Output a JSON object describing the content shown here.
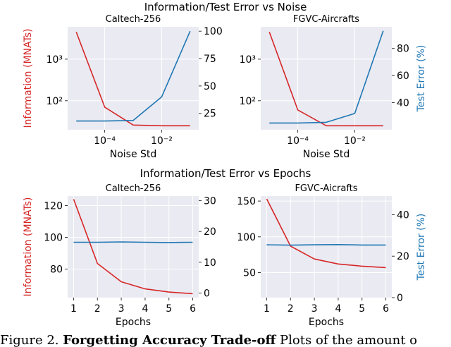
{
  "figure": {
    "top_title": "Information/Test Error vs Noise",
    "bottom_title": "Information/Test Error vs Epochs",
    "caption_prefix": "Figure 2.",
    "caption_bold": "Forgetting Accuracy Trade-off",
    "caption_rest": "Plots of the amount o",
    "colors": {
      "information": "#d62728",
      "error": "#1f77b4",
      "plot_bg": "#eaeaf2",
      "grid": "#ffffff"
    }
  },
  "chart_data": [
    {
      "type": "line",
      "title": "Caltech-256",
      "xlabel": "Noise Std",
      "ylabel_left": "Information (MNATs)",
      "ylabel_right": "",
      "xscale": "log",
      "yscale_left": "log",
      "yscale_right": "linear",
      "xlim": [
        5e-06,
        0.2
      ],
      "ylim_left": [
        20,
        6000
      ],
      "ylim_right": [
        10,
        104
      ],
      "x_ticks": [
        0.0001,
        0.01
      ],
      "x_tick_labels": [
        "10⁻⁴",
        "10⁻²"
      ],
      "y_left_ticks": [
        100,
        1000
      ],
      "y_left_tick_labels": [
        "10²",
        "10³"
      ],
      "y_right_ticks": [
        25,
        50,
        75,
        100
      ],
      "y_right_tick_labels": [
        "25",
        "50",
        "75",
        "100"
      ],
      "grid": true,
      "series": [
        {
          "axis": "left",
          "color": "#d62728",
          "x": [
            1e-05,
            0.0001,
            0.001,
            0.01,
            0.1
          ],
          "y": [
            4500,
            70,
            26,
            25,
            25
          ]
        },
        {
          "axis": "right",
          "color": "#1f77b4",
          "x": [
            1e-05,
            0.0001,
            0.001,
            0.01,
            0.1
          ],
          "y": [
            18,
            18,
            18.5,
            40,
            100
          ]
        }
      ]
    },
    {
      "type": "line",
      "title": "FGVC-Aircrafts",
      "xlabel": "Noise Std",
      "ylabel_left": "",
      "ylabel_right": "Test Error (%)",
      "xscale": "log",
      "yscale_left": "log",
      "yscale_right": "linear",
      "xlim": [
        5e-06,
        0.2
      ],
      "ylim_left": [
        20,
        6000
      ],
      "ylim_right": [
        20,
        96
      ],
      "x_ticks": [
        0.0001,
        0.01
      ],
      "x_tick_labels": [
        "10⁻⁴",
        "10⁻²"
      ],
      "y_left_ticks": [
        100,
        1000
      ],
      "y_left_tick_labels": [
        "10²",
        "10³"
      ],
      "y_right_ticks": [
        40,
        60,
        80
      ],
      "y_right_tick_labels": [
        "40",
        "60",
        "80"
      ],
      "grid": true,
      "series": [
        {
          "axis": "left",
          "color": "#d62728",
          "x": [
            1e-05,
            0.0001,
            0.001,
            0.01,
            0.1
          ],
          "y": [
            4500,
            60,
            25,
            25,
            25
          ]
        },
        {
          "axis": "right",
          "color": "#1f77b4",
          "x": [
            1e-05,
            0.0001,
            0.001,
            0.01,
            0.1
          ],
          "y": [
            25,
            25,
            25.5,
            32,
            93
          ]
        }
      ]
    },
    {
      "type": "line",
      "title": "Caltech-256",
      "xlabel": "Epochs",
      "ylabel_left": "Information (MNATs)",
      "ylabel_right": "",
      "xscale": "linear",
      "yscale_left": "linear",
      "yscale_right": "linear",
      "xlim": [
        0.75,
        6.25
      ],
      "ylim_left": [
        62,
        126
      ],
      "ylim_right": [
        -1.5,
        31.5
      ],
      "x_ticks": [
        1,
        2,
        3,
        4,
        5,
        6
      ],
      "x_tick_labels": [
        "1",
        "2",
        "3",
        "4",
        "5",
        "6"
      ],
      "y_left_ticks": [
        80,
        100,
        120
      ],
      "y_left_tick_labels": [
        "80",
        "100",
        "120"
      ],
      "y_right_ticks": [
        0,
        10,
        20,
        30
      ],
      "y_right_tick_labels": [
        "0",
        "10",
        "20",
        "30"
      ],
      "grid": true,
      "series": [
        {
          "axis": "left",
          "color": "#d62728",
          "x": [
            1,
            2,
            3,
            4,
            5,
            6
          ],
          "y": [
            124,
            83.5,
            72,
            67.5,
            65.5,
            64.5
          ]
        },
        {
          "axis": "right",
          "color": "#1f77b4",
          "x": [
            1,
            2,
            3,
            4,
            5,
            6
          ],
          "y": [
            16.5,
            16.5,
            16.6,
            16.5,
            16.4,
            16.5
          ]
        }
      ]
    },
    {
      "type": "line",
      "title": "FGVC-Aicrafts",
      "xlabel": "Epochs",
      "ylabel_left": "",
      "ylabel_right": "Test Error (%)",
      "xscale": "linear",
      "yscale_left": "linear",
      "yscale_right": "linear",
      "xlim": [
        0.75,
        6.25
      ],
      "ylim_left": [
        15,
        157
      ],
      "ylim_right": [
        0,
        49
      ],
      "x_ticks": [
        1,
        2,
        3,
        4,
        5,
        6
      ],
      "x_tick_labels": [
        "1",
        "2",
        "3",
        "4",
        "5",
        "6"
      ],
      "y_left_ticks": [
        50,
        100,
        150
      ],
      "y_left_tick_labels": [
        "50",
        "100",
        "150"
      ],
      "y_right_ticks": [
        0,
        20,
        40
      ],
      "y_right_tick_labels": [
        "0",
        "20",
        "40"
      ],
      "grid": true,
      "series": [
        {
          "axis": "left",
          "color": "#d62728",
          "x": [
            1,
            2,
            3,
            4,
            5,
            6
          ],
          "y": [
            153,
            87,
            69,
            62,
            59,
            57
          ]
        },
        {
          "axis": "right",
          "color": "#1f77b4",
          "x": [
            1,
            2,
            3,
            4,
            5,
            6
          ],
          "y": [
            25.5,
            25.3,
            25.5,
            25.6,
            25.4,
            25.4
          ]
        }
      ]
    }
  ]
}
